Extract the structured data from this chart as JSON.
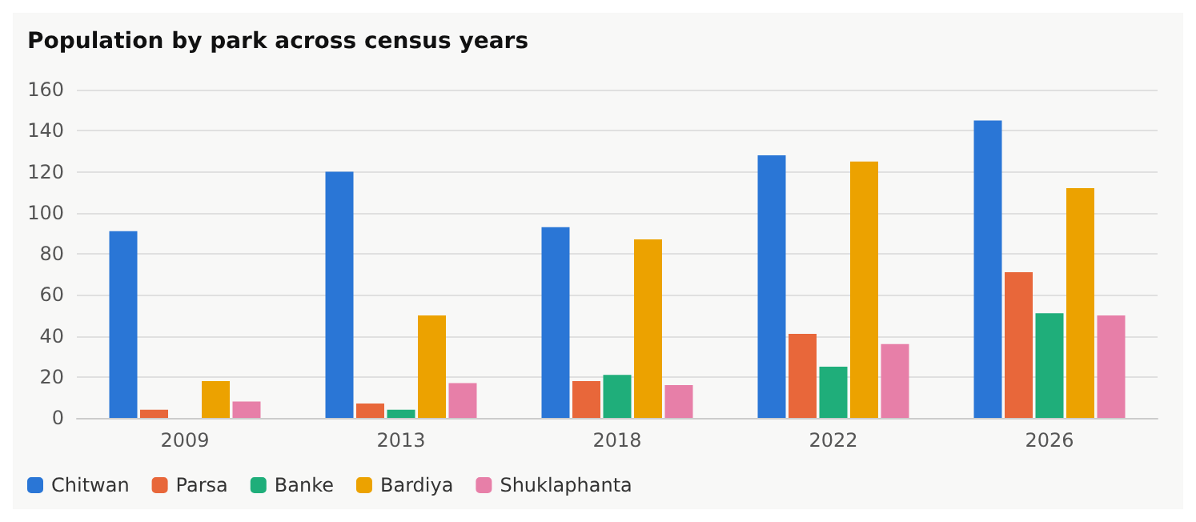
{
  "chart_data": {
    "type": "bar",
    "title": "Population by park across census years",
    "categories": [
      "2009",
      "2013",
      "2018",
      "2022",
      "2026"
    ],
    "series": [
      {
        "name": "Chitwan",
        "color": "#2a76d6",
        "values": [
          91,
          120,
          93,
          128,
          145
        ]
      },
      {
        "name": "Parsa",
        "color": "#e8673a",
        "values": [
          4,
          7,
          18,
          41,
          71
        ]
      },
      {
        "name": "Banke",
        "color": "#1fae7a",
        "values": [
          0,
          4,
          21,
          25,
          51
        ]
      },
      {
        "name": "Bardiya",
        "color": "#eca200",
        "values": [
          18,
          50,
          87,
          125,
          112
        ]
      },
      {
        "name": "Shuklaphanta",
        "color": "#e77fa8",
        "values": [
          8,
          17,
          16,
          36,
          50
        ]
      }
    ],
    "ylim": [
      0,
      160
    ],
    "yticks": [
      0,
      20,
      40,
      60,
      80,
      100,
      120,
      140,
      160
    ],
    "grid": "y",
    "legend": "bottom left"
  }
}
